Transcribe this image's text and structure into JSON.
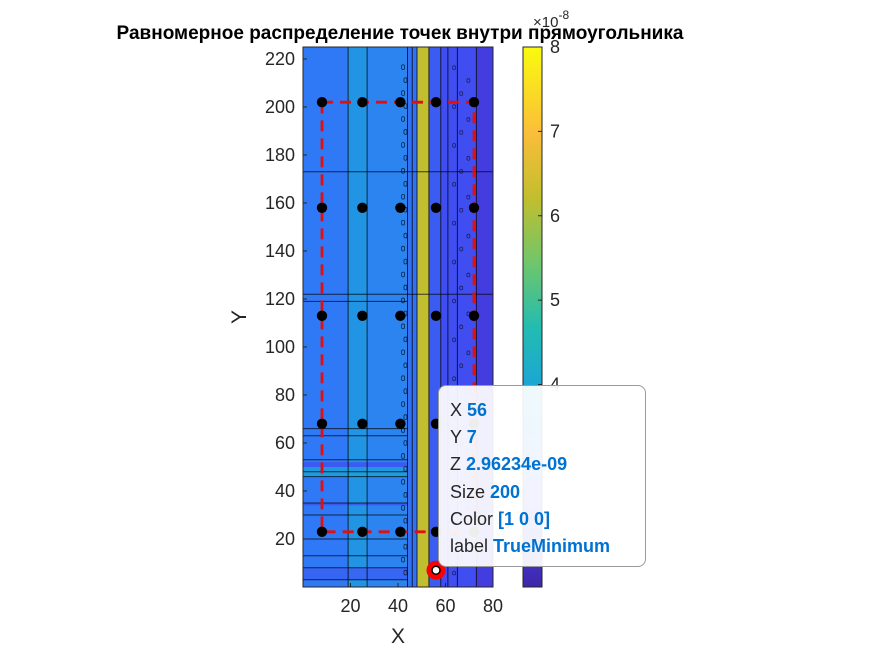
{
  "chart_data": {
    "type": "heatmap",
    "title": "Равномерное распределение точек внутри прямоугольника",
    "xlabel": "X",
    "ylabel": "Y",
    "xlim": [
      0,
      80
    ],
    "ylim": [
      0,
      225
    ],
    "xticks": [
      20,
      40,
      60,
      80
    ],
    "yticks": [
      20,
      40,
      60,
      80,
      100,
      120,
      140,
      160,
      180,
      200,
      220
    ],
    "colorbar": {
      "ticks": [
        4,
        5,
        6,
        7,
        8
      ],
      "exponent_label": "×10",
      "exponent_power": "-8",
      "colormap": "parula"
    },
    "field_columns": [
      {
        "x0": 0,
        "x1": 19,
        "value": 3.1
      },
      {
        "x0": 19,
        "x1": 27,
        "value": 3.6
      },
      {
        "x0": 27,
        "x1": 44,
        "value": 3.3
      },
      {
        "x0": 44,
        "x1": 48,
        "value": 3.0
      },
      {
        "x0": 48,
        "x1": 53,
        "value": 6.2
      },
      {
        "x0": 53,
        "x1": 58,
        "value": 2.7
      },
      {
        "x0": 58,
        "x1": 73,
        "value": 2.5
      },
      {
        "x0": 73,
        "x1": 80,
        "value": 2.2
      }
    ],
    "grid_points": {
      "x": [
        8,
        25,
        41,
        56,
        72
      ],
      "y": [
        23,
        68,
        113,
        158,
        202
      ]
    },
    "rectangle": {
      "x": [
        8,
        72
      ],
      "y": [
        23,
        202
      ],
      "color": "#e01010"
    },
    "true_minimum": {
      "x": 56,
      "y": 7
    },
    "datatip": {
      "rows": [
        {
          "label": "X",
          "value": "56"
        },
        {
          "label": "Y",
          "value": "7"
        },
        {
          "label": "Z",
          "value": "2.96234e-09"
        },
        {
          "label": "Size",
          "value": "200"
        },
        {
          "label": "Color",
          "value": "[1 0 0]"
        },
        {
          "label": "label",
          "value": "TrueMinimum"
        }
      ]
    }
  }
}
